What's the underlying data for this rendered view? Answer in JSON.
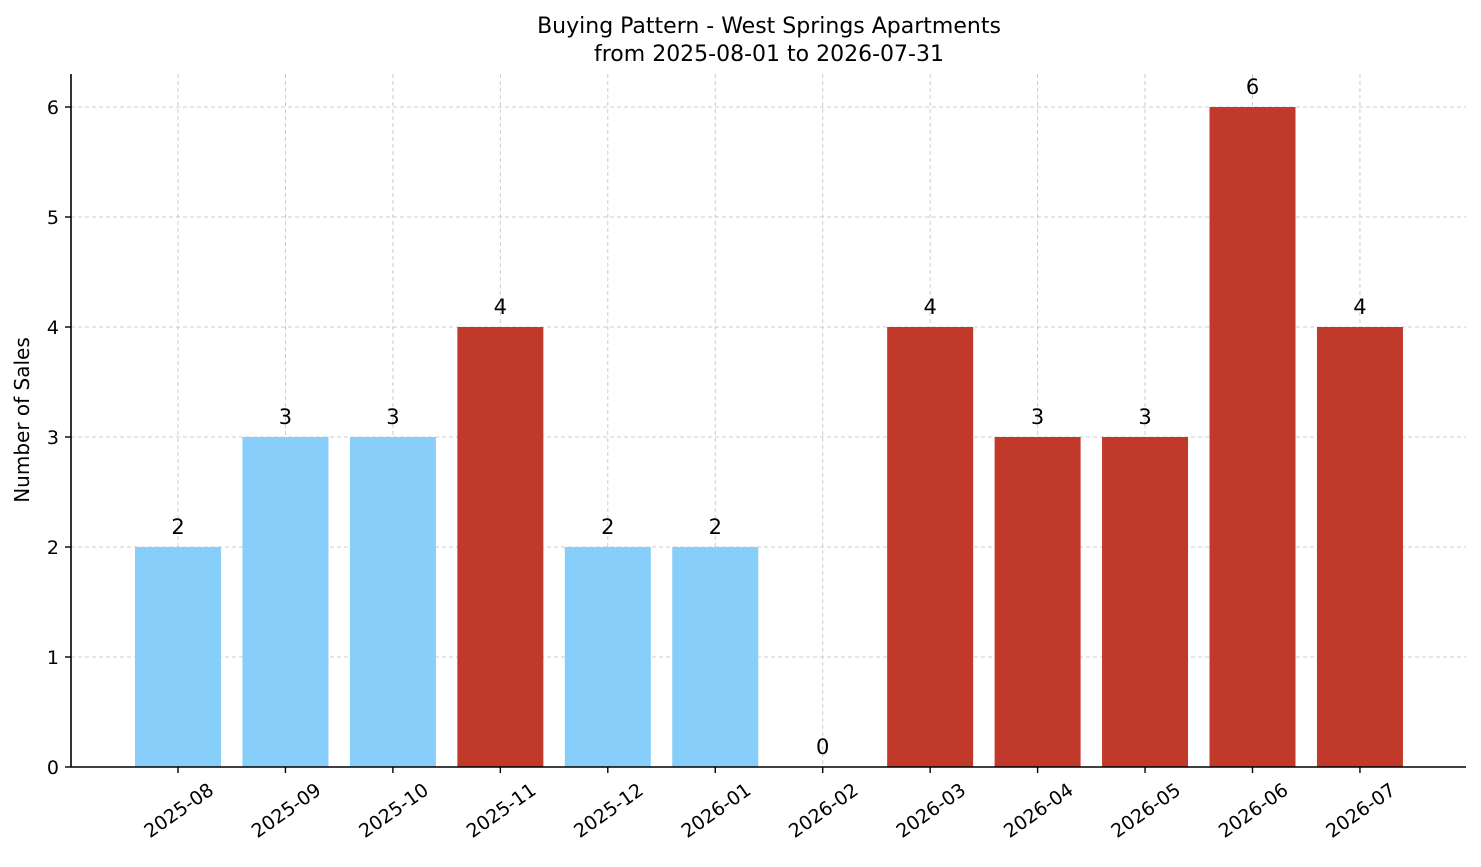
{
  "chart_data": {
    "type": "bar",
    "title": "Buying Pattern - West Springs Apartments",
    "subtitle": "from 2025-08-01 to 2026-07-31",
    "xlabel": "",
    "ylabel": "Number of Sales",
    "categories": [
      "2025-08",
      "2025-09",
      "2025-10",
      "2025-11",
      "2025-12",
      "2026-01",
      "2026-02",
      "2026-03",
      "2026-04",
      "2026-05",
      "2026-06",
      "2026-07"
    ],
    "values": [
      2,
      3,
      3,
      4,
      2,
      2,
      0,
      4,
      3,
      3,
      6,
      4
    ],
    "bar_colors": [
      "#87cefa",
      "#87cefa",
      "#87cefa",
      "#c0392b",
      "#87cefa",
      "#87cefa",
      "#87cefa",
      "#c0392b",
      "#c0392b",
      "#c0392b",
      "#c0392b",
      "#c0392b"
    ],
    "ylim": [
      0,
      6.3
    ],
    "yticks": [
      0,
      1,
      2,
      3,
      4,
      5,
      6
    ],
    "grid": true
  }
}
